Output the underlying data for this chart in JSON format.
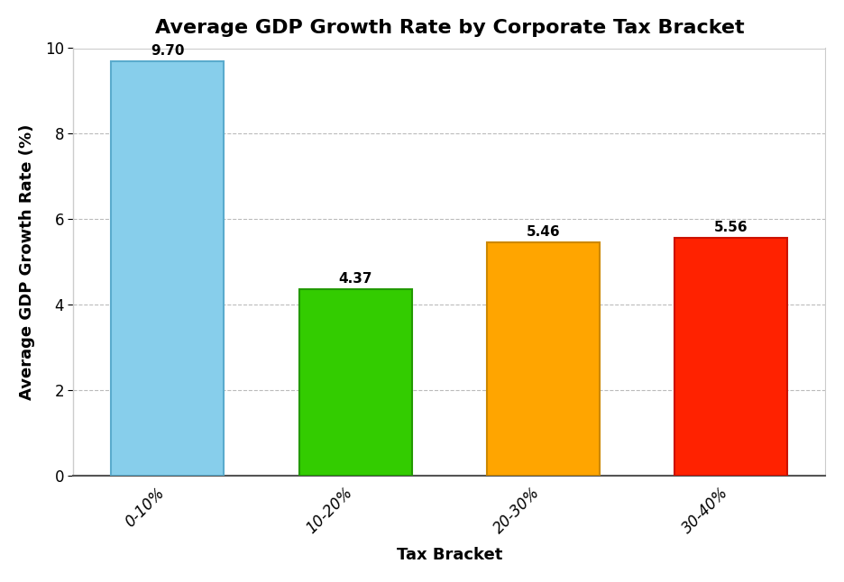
{
  "title": "Average GDP Growth Rate by Corporate Tax Bracket",
  "xlabel": "Tax Bracket",
  "ylabel": "Average GDP Growth Rate (%)",
  "categories": [
    "0-10%",
    "10-20%",
    "20-30%",
    "30-40%"
  ],
  "values": [
    9.7,
    4.37,
    5.46,
    5.56
  ],
  "bar_colors": [
    "#87CEEB",
    "#33CC00",
    "#FFA500",
    "#FF2200"
  ],
  "bar_edge_colors": [
    "#5AABCD",
    "#229900",
    "#CC8800",
    "#CC1100"
  ],
  "ylim": [
    0,
    10
  ],
  "yticks": [
    0,
    2,
    4,
    6,
    8,
    10
  ],
  "title_fontsize": 16,
  "label_fontsize": 13,
  "tick_fontsize": 12,
  "annotation_fontsize": 11,
  "background_color": "#FFFFFF",
  "grid_color": "#AAAAAA",
  "grid_linestyle": "--",
  "grid_alpha": 0.8,
  "bar_width": 0.6,
  "figsize": [
    9.36,
    6.46
  ],
  "dpi": 100
}
